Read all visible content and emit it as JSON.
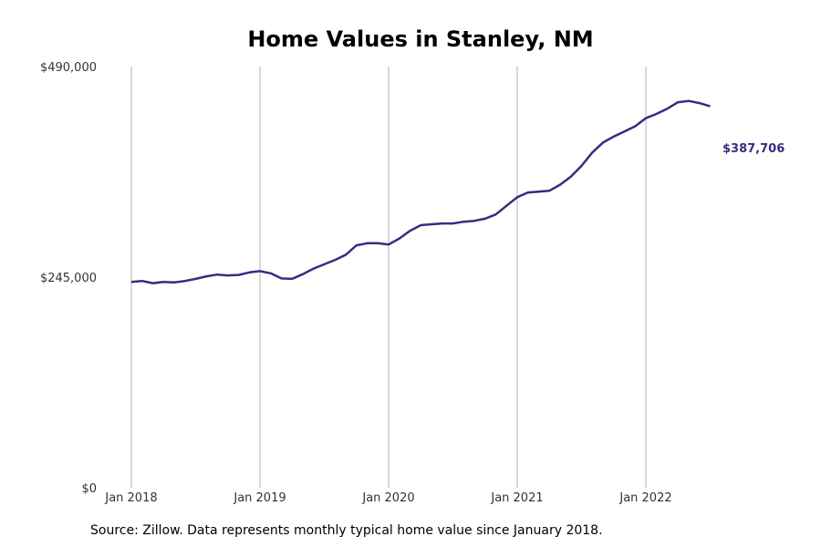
{
  "chart_data": {
    "type": "line",
    "title": "Home Values in Stanley, NM",
    "xlabel": "",
    "ylabel": "",
    "ylim": [
      0,
      490000
    ],
    "y_ticks": [
      {
        "value": 0,
        "label": "$0"
      },
      {
        "value": 245000,
        "label": "$245,000"
      },
      {
        "value": 490000,
        "label": "$490,000"
      }
    ],
    "x_ticks": [
      {
        "date": "2018-01",
        "label": "Jan 2018"
      },
      {
        "date": "2019-01",
        "label": "Jan 2019"
      },
      {
        "date": "2020-01",
        "label": "Jan 2020"
      },
      {
        "date": "2021-01",
        "label": "Jan 2021"
      },
      {
        "date": "2022-01",
        "label": "Jan 2022"
      }
    ],
    "grid": "vertical",
    "line_color": "#332e83",
    "series": [
      {
        "x": [
          "2018-01",
          "2018-02",
          "2018-03",
          "2018-04",
          "2018-05",
          "2018-06",
          "2018-07",
          "2018-08",
          "2018-09",
          "2018-10",
          "2018-11",
          "2018-12",
          "2019-01",
          "2019-02",
          "2019-03",
          "2019-04",
          "2019-05",
          "2019-06",
          "2019-07",
          "2019-08",
          "2019-09",
          "2019-10",
          "2019-11",
          "2019-12",
          "2020-01",
          "2020-02",
          "2020-03",
          "2020-04",
          "2020-05",
          "2020-06",
          "2020-07",
          "2020-08",
          "2020-09",
          "2020-10",
          "2020-11",
          "2020-12",
          "2021-01",
          "2021-02",
          "2021-03",
          "2021-04",
          "2021-05",
          "2021-06",
          "2021-07",
          "2021-08",
          "2021-09",
          "2021-10",
          "2021-11",
          "2021-12",
          "2022-01",
          "2022-02",
          "2022-03",
          "2022-04",
          "2022-05",
          "2022-06",
          "2022-07"
        ],
        "values": [
          239500,
          240500,
          238000,
          239500,
          239000,
          240500,
          243000,
          246000,
          248000,
          247000,
          247500,
          250500,
          252000,
          249500,
          243500,
          243000,
          248500,
          255000,
          260000,
          265000,
          271000,
          282000,
          284500,
          284500,
          283000,
          290000,
          299000,
          305500,
          306500,
          307500,
          307500,
          309500,
          310500,
          313000,
          318000,
          328000,
          338000,
          343500,
          344500,
          345500,
          352500,
          362000,
          374500,
          390000,
          401500,
          408500,
          414500,
          420500,
          430000,
          435000,
          441000,
          448500,
          450000,
          447500,
          387706
        ]
      }
    ],
    "end_label": "$387,706"
  },
  "source_text": "Source: Zillow. Data represents monthly typical home value since January 2018."
}
